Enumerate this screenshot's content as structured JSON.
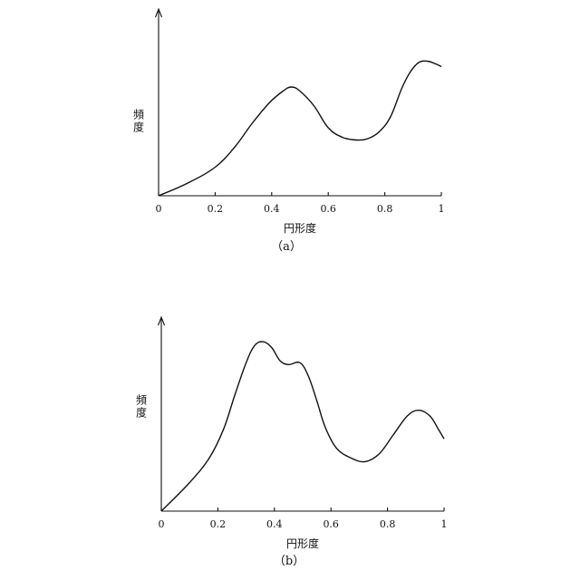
{
  "chart_data": [
    {
      "type": "line",
      "caption": "（a）",
      "xlabel": "円形度",
      "ylabel": "頻度",
      "xlim": [
        0,
        1
      ],
      "xticks": [
        "0",
        "0.2",
        "0.4",
        "0.6",
        "0.8",
        "1"
      ],
      "y_tick_labels": "none",
      "grid": false,
      "series": [
        {
          "x": [
            0,
            0.1,
            0.2,
            0.27,
            0.33,
            0.39,
            0.44,
            0.47,
            0.5,
            0.55,
            0.6,
            0.65,
            0.7,
            0.74,
            0.78,
            0.82,
            0.86,
            0.89,
            0.92,
            0.95,
            0.98,
            1.0
          ],
          "y": [
            0,
            0.09,
            0.21,
            0.36,
            0.53,
            0.68,
            0.77,
            0.8,
            0.77,
            0.66,
            0.5,
            0.43,
            0.41,
            0.42,
            0.47,
            0.58,
            0.79,
            0.91,
            0.98,
            0.99,
            0.97,
            0.95
          ]
        }
      ]
    },
    {
      "type": "line",
      "caption": "（b）",
      "xlabel": "円形度",
      "ylabel": "頻度",
      "xlim": [
        0,
        1
      ],
      "xticks": [
        "0",
        "0.2",
        "0.4",
        "0.6",
        "0.8",
        "1"
      ],
      "y_tick_labels": "none",
      "grid": false,
      "series": [
        {
          "x": [
            0,
            0.1,
            0.17,
            0.22,
            0.26,
            0.3,
            0.33,
            0.36,
            0.39,
            0.42,
            0.45,
            0.49,
            0.52,
            0.55,
            0.58,
            0.62,
            0.67,
            0.72,
            0.77,
            0.82,
            0.87,
            0.91,
            0.95,
            0.98,
            1.0
          ],
          "y": [
            0,
            0.15,
            0.28,
            0.43,
            0.61,
            0.78,
            0.87,
            0.89,
            0.86,
            0.79,
            0.77,
            0.78,
            0.71,
            0.58,
            0.44,
            0.33,
            0.28,
            0.26,
            0.3,
            0.4,
            0.5,
            0.53,
            0.5,
            0.43,
            0.38
          ]
        }
      ]
    }
  ]
}
